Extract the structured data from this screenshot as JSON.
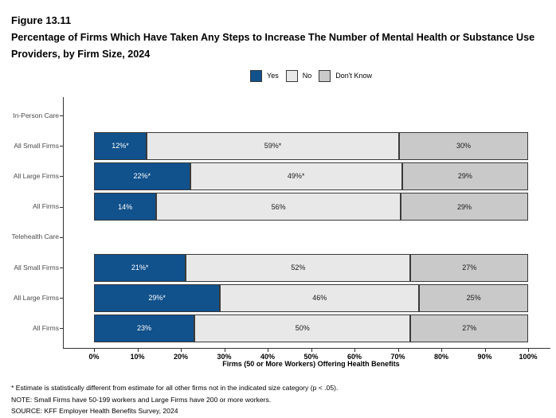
{
  "header": {
    "figure_label": "Figure 13.11",
    "title": "Percentage of Firms Which Have Taken Any Steps to Increase The Number of Mental Health or Substance Use Providers, by Firm Size, 2024"
  },
  "colors": {
    "yes": "#11518C",
    "no": "#E8E8E8",
    "dont_know": "#C9C9C9",
    "bar_border": "#3A3A3A",
    "axis": "#333333",
    "axis_label_text": "#4A4A4A"
  },
  "legend": [
    {
      "name": "yes",
      "label": "Yes",
      "color": "#11518C"
    },
    {
      "name": "no",
      "label": "No",
      "color": "#E8E8E8"
    },
    {
      "name": "dont-know",
      "label": "Don't Know",
      "color": "#C9C9C9"
    }
  ],
  "chart_data": {
    "type": "bar",
    "orientation": "horizontal-stacked",
    "series_names": [
      "Yes",
      "No",
      "Don't Know"
    ],
    "xlabel": "Firms (50 or More Workers) Offering Health Benefits",
    "xlim": [
      0,
      100
    ],
    "x_ticks": [
      {
        "value": 0,
        "label": "0%"
      },
      {
        "value": 10,
        "label": "10%"
      },
      {
        "value": 20,
        "label": "20%"
      },
      {
        "value": 30,
        "label": "30%"
      },
      {
        "value": 40,
        "label": "40%"
      },
      {
        "value": 50,
        "label": "50%"
      },
      {
        "value": 60,
        "label": "60%"
      },
      {
        "value": 70,
        "label": "70%"
      },
      {
        "value": 80,
        "label": "80%"
      },
      {
        "value": 90,
        "label": "90%"
      },
      {
        "value": 100,
        "label": "100%"
      }
    ],
    "grid": false,
    "legend_position": "top-center",
    "rows": [
      {
        "label": "In-Person Care",
        "is_group_header": true
      },
      {
        "label": "All Small Firms",
        "values": [
          12,
          59,
          30
        ],
        "value_labels": [
          "12%*",
          "59%*",
          "30%"
        ]
      },
      {
        "label": "All Large Firms",
        "values": [
          22,
          49,
          29
        ],
        "value_labels": [
          "22%*",
          "49%*",
          "29%"
        ]
      },
      {
        "label": "All Firms",
        "values": [
          14,
          56,
          29
        ],
        "value_labels": [
          "14%",
          "56%",
          "29%"
        ]
      },
      {
        "label": "Telehealth Care",
        "is_group_header": true
      },
      {
        "label": "All Small Firms",
        "values": [
          21,
          52,
          27
        ],
        "value_labels": [
          "21%*",
          "52%",
          "27%"
        ]
      },
      {
        "label": "All Large Firms",
        "values": [
          29,
          46,
          25
        ],
        "value_labels": [
          "29%*",
          "46%",
          "25%"
        ]
      },
      {
        "label": "All Firms",
        "values": [
          23,
          50,
          27
        ],
        "value_labels": [
          "23%",
          "50%",
          "27%"
        ]
      }
    ]
  },
  "footnotes": [
    "* Estimate is statistically different from estimate for all other firms not in the indicated size category (p < .05).",
    "NOTE: Small Firms have 50-199 workers and Large Firms have 200 or more workers.",
    "SOURCE: KFF Employer Health Benefits Survey, 2024"
  ]
}
